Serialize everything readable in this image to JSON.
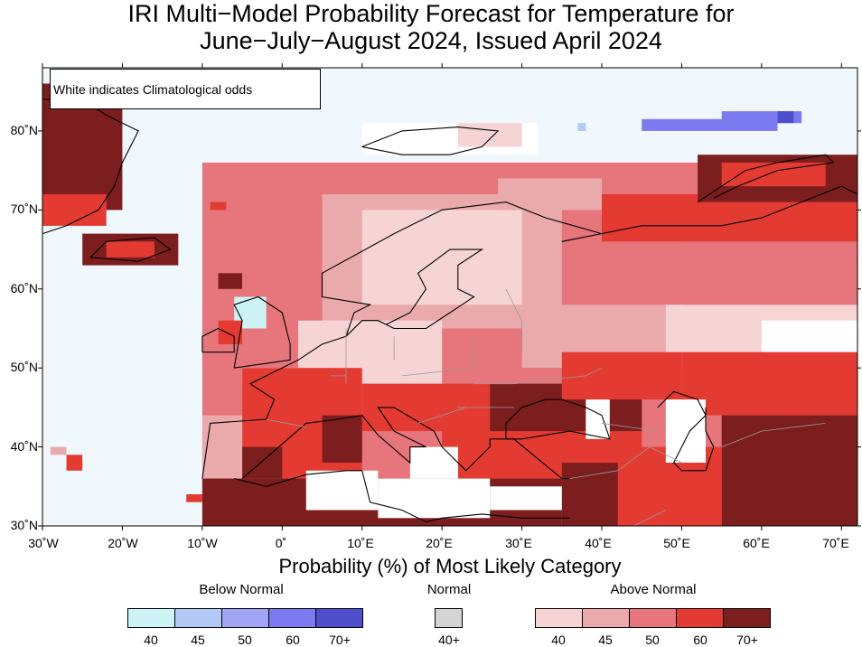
{
  "title_line1": "IRI Multi−Model Probability Forecast for Temperature for",
  "title_line2": "June−July−August 2024, Issued April 2024",
  "note": "White indicates Climatological odds",
  "map": {
    "lon_range": [
      -30,
      72
    ],
    "lat_range": [
      30,
      88
    ],
    "x_ticks": [
      "30˚W",
      "20˚W",
      "10˚W",
      "0˚",
      "10˚E",
      "20˚E",
      "30˚E",
      "40˚E",
      "50˚E",
      "60˚E",
      "70˚E"
    ],
    "y_ticks": [
      "80˚N",
      "70˚N",
      "60˚N",
      "50˚N",
      "40˚N",
      "30˚N"
    ],
    "colors": {
      "ocean": "#f0f8fd",
      "climatology": "#ffffff",
      "an_40": "#f6d4d4",
      "an_45": "#eaa9ab",
      "an_50": "#e6757c",
      "an_60": "#e33b32",
      "an_70": "#7c1e1e",
      "bn_40": "#cef3f7",
      "bn_45": "#b2c8f5",
      "bn_50": "#a0a6f5",
      "bn_60": "#7b7af0",
      "bn_70": "#4f4fcc",
      "normal_40": "#d4d4d4"
    }
  },
  "legend": {
    "title": "Probability (%) of Most Likely Category",
    "below_normal": {
      "label": "Below Normal",
      "colors": [
        "#cef3f7",
        "#b2c8f5",
        "#a0a6f5",
        "#7b7af0",
        "#4f4fcc"
      ],
      "values": [
        "40",
        "45",
        "50",
        "60",
        "70+"
      ]
    },
    "normal": {
      "label": "Normal",
      "colors": [
        "#d4d4d4"
      ],
      "values": [
        "40+"
      ]
    },
    "above_normal": {
      "label": "Above Normal",
      "colors": [
        "#f6d4d4",
        "#eaa9ab",
        "#e6757c",
        "#e33b32",
        "#7c1e1e"
      ],
      "values": [
        "40",
        "45",
        "50",
        "60",
        "70+"
      ]
    }
  }
}
